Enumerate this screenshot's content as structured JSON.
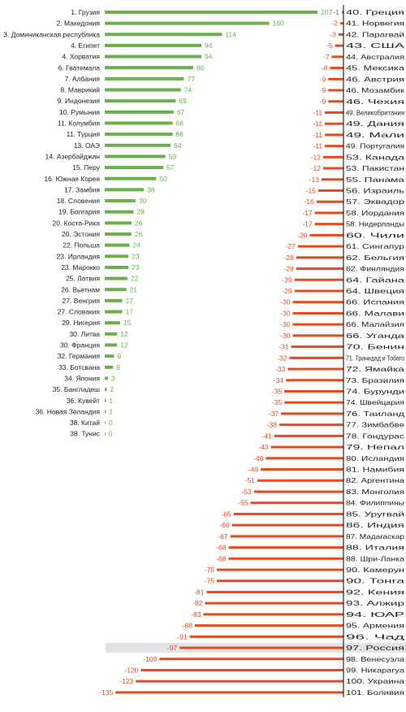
{
  "colors": {
    "positive": "#6ab04c",
    "negative": "#e8491d",
    "axis": "#000000",
    "highlight": "#e3e3e3"
  },
  "chart_data": {
    "type": "bar",
    "orientation": "horizontal",
    "highlight": "97. Россия",
    "positive": [
      {
        "label": "1. Грузия",
        "value": 207
      },
      {
        "label": "2. Македония",
        "value": 160
      },
      {
        "label": "3. Доминиканская республика",
        "value": 114
      },
      {
        "label": "4. Египет",
        "value": 94
      },
      {
        "label": "4. Хорватия",
        "value": 94
      },
      {
        "label": "6. Гватемала",
        "value": 86
      },
      {
        "label": "7. Албания",
        "value": 77
      },
      {
        "label": "8. Маврикий",
        "value": 74
      },
      {
        "label": "9. Индонезия",
        "value": 69
      },
      {
        "label": "10. Румыния",
        "value": 67
      },
      {
        "label": "11. Колумбия",
        "value": 66
      },
      {
        "label": "11. Турция",
        "value": 66
      },
      {
        "label": "13. ОАЭ",
        "value": 64
      },
      {
        "label": "14. Азербайджан",
        "value": 59
      },
      {
        "label": "15. Перу",
        "value": 57
      },
      {
        "label": "16. Южная Корея",
        "value": 50
      },
      {
        "label": "17. Замбия",
        "value": 38
      },
      {
        "label": "18. Словения",
        "value": 30
      },
      {
        "label": "19. Болгария",
        "value": 28
      },
      {
        "label": "20. Коста-Рика",
        "value": 26
      },
      {
        "label": "20. Эстония",
        "value": 26
      },
      {
        "label": "22. Польша",
        "value": 24
      },
      {
        "label": "23. Ирландия",
        "value": 23
      },
      {
        "label": "23. Марокко",
        "value": 23
      },
      {
        "label": "25. Латвия",
        "value": 22
      },
      {
        "label": "26. Вьетнам",
        "value": 21
      },
      {
        "label": "27. Венгрия",
        "value": 17
      },
      {
        "label": "27. Словакия",
        "value": 17
      },
      {
        "label": "29. Нигерия",
        "value": 15
      },
      {
        "label": "30. Литва",
        "value": 12
      },
      {
        "label": "30. Франция",
        "value": 12
      },
      {
        "label": "32. Германия",
        "value": 9
      },
      {
        "label": "33. Ботсвана",
        "value": 8
      },
      {
        "label": "34. Япония",
        "value": 3
      },
      {
        "label": "35. Бангладеш",
        "value": 2
      },
      {
        "label": "36. Кувейт",
        "value": 1
      },
      {
        "label": "36. Новая Зеландия",
        "value": 1
      },
      {
        "label": "38. Китай",
        "value": 0
      },
      {
        "label": "38. Тунис",
        "value": 0
      }
    ],
    "negative": [
      {
        "label": "40. Греция",
        "value": -1
      },
      {
        "label": "41. Норвегия",
        "value": -2
      },
      {
        "label": "42. Парагвай",
        "value": -3
      },
      {
        "label": "43. США",
        "value": -5
      },
      {
        "label": "44. Австралия",
        "value": -7
      },
      {
        "label": "45. Мексика",
        "value": -8
      },
      {
        "label": "46. Австрия",
        "value": -9
      },
      {
        "label": "46. Мозамбик",
        "value": -9
      },
      {
        "label": "46. Чехия",
        "value": -9
      },
      {
        "label": "49. Великобритания",
        "value": -11
      },
      {
        "label": "49. Дания",
        "value": -11
      },
      {
        "label": "49. Мали",
        "value": -11
      },
      {
        "label": "49. Португалия",
        "value": -11
      },
      {
        "label": "53. Канада",
        "value": -12
      },
      {
        "label": "53. Пакистан",
        "value": -12
      },
      {
        "label": "55. Панама",
        "value": -13
      },
      {
        "label": "56. Израиль",
        "value": -15
      },
      {
        "label": "57. Эквадор",
        "value": -16
      },
      {
        "label": "58. Иордания",
        "value": -17
      },
      {
        "label": "58. Нидерланды",
        "value": -17
      },
      {
        "label": "60. Чили",
        "value": -20
      },
      {
        "label": "61. Сингапур",
        "value": -27
      },
      {
        "label": "62. Бельгия",
        "value": -28
      },
      {
        "label": "62. Финляндия",
        "value": -28
      },
      {
        "label": "64. Гайана",
        "value": -29
      },
      {
        "label": "64. Швеция",
        "value": -29
      },
      {
        "label": "66. Испания",
        "value": -30
      },
      {
        "label": "66. Малави",
        "value": -30
      },
      {
        "label": "66. Малайзия",
        "value": -30
      },
      {
        "label": "66. Уганда",
        "value": -30
      },
      {
        "label": "70. Бенин",
        "value": -31
      },
      {
        "label": "71. Тринидад и Тобаго",
        "value": -32
      },
      {
        "label": "72. Ямайка",
        "value": -33
      },
      {
        "label": "73. Бразилия",
        "value": -34
      },
      {
        "label": "74. Бурунди",
        "value": -35
      },
      {
        "label": "74. Швейцария",
        "value": -35
      },
      {
        "label": "76. Таиланд",
        "value": -37
      },
      {
        "label": "77. Зимбабве",
        "value": -38
      },
      {
        "label": "78. Гондурас",
        "value": -41
      },
      {
        "label": "79. Непал",
        "value": -43
      },
      {
        "label": "80. Исландия",
        "value": -46
      },
      {
        "label": "81. Намибия",
        "value": -49
      },
      {
        "label": "82. Аргентина",
        "value": -51
      },
      {
        "label": "83. Монголия",
        "value": -53
      },
      {
        "label": "84. Филиппины",
        "value": -55
      },
      {
        "label": "85. Уругвай",
        "value": -65
      },
      {
        "label": "86. Индия",
        "value": -66
      },
      {
        "label": "87. Мадагаскар",
        "value": -67
      },
      {
        "label": "88. Италия",
        "value": -68
      },
      {
        "label": "88. Шри-Ланка",
        "value": -68
      },
      {
        "label": "90. Камерун",
        "value": -75
      },
      {
        "label": "90. Тонга",
        "value": -75
      },
      {
        "label": "92. Кения",
        "value": -81
      },
      {
        "label": "93. Алжир",
        "value": -82
      },
      {
        "label": "94. ЮАР",
        "value": -83
      },
      {
        "label": "95. Армения",
        "value": -88
      },
      {
        "label": "96. Чад",
        "value": -91
      },
      {
        "label": "97. Россия",
        "value": -97
      },
      {
        "label": "98. Венесуэла",
        "value": -109
      },
      {
        "label": "99. Никарагуа",
        "value": -120
      },
      {
        "label": "100. Украина",
        "value": -123
      },
      {
        "label": "101. Боливия",
        "value": -135
      }
    ]
  }
}
